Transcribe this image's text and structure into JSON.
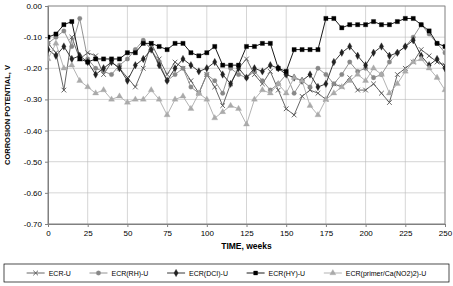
{
  "chart_data": {
    "type": "line",
    "x_label": "TIME, weeks",
    "y_label": "CORROSION POTENTIAL, V",
    "x": [
      0,
      5,
      10,
      15,
      20,
      25,
      30,
      35,
      40,
      45,
      50,
      55,
      60,
      65,
      70,
      75,
      80,
      85,
      90,
      95,
      100,
      105,
      110,
      115,
      120,
      125,
      130,
      135,
      140,
      145,
      150,
      155,
      160,
      165,
      170,
      175,
      180,
      185,
      190,
      195,
      200,
      205,
      210,
      215,
      220,
      225,
      230,
      235,
      240,
      245,
      250
    ],
    "series": [
      {
        "name": "ECR-U",
        "color": "#555555",
        "marker": "x",
        "values": [
          -0.12,
          -0.15,
          -0.27,
          -0.1,
          -0.17,
          -0.15,
          -0.16,
          -0.22,
          -0.18,
          -0.2,
          -0.23,
          -0.26,
          -0.2,
          -0.12,
          -0.17,
          -0.22,
          -0.18,
          -0.2,
          -0.24,
          -0.28,
          -0.22,
          -0.26,
          -0.32,
          -0.25,
          -0.2,
          -0.17,
          -0.22,
          -0.25,
          -0.21,
          -0.27,
          -0.33,
          -0.35,
          -0.29,
          -0.27,
          -0.28,
          -0.3,
          -0.25,
          -0.26,
          -0.23,
          -0.27,
          -0.27,
          -0.25,
          -0.28,
          -0.31,
          -0.22,
          -0.2,
          -0.18,
          -0.14,
          -0.16,
          -0.18,
          -0.19
        ]
      },
      {
        "name": "ECR(RH)-U",
        "color": "#888888",
        "marker": "circle",
        "values": [
          -0.12,
          -0.1,
          -0.08,
          -0.13,
          -0.04,
          -0.17,
          -0.2,
          -0.21,
          -0.22,
          -0.19,
          -0.17,
          -0.14,
          -0.11,
          -0.14,
          -0.18,
          -0.24,
          -0.22,
          -0.2,
          -0.26,
          -0.28,
          -0.22,
          -0.24,
          -0.28,
          -0.2,
          -0.22,
          -0.23,
          -0.21,
          -0.24,
          -0.27,
          -0.25,
          -0.22,
          -0.28,
          -0.24,
          -0.26,
          -0.2,
          -0.22,
          -0.25,
          -0.22,
          -0.18,
          -0.21,
          -0.2,
          -0.23,
          -0.22,
          -0.18,
          -0.15,
          -0.13,
          -0.1,
          -0.06,
          -0.09,
          -0.12,
          -0.15
        ]
      },
      {
        "name": "ECR(DCI)-U",
        "color": "#222222",
        "marker": "diamond",
        "values": [
          -0.14,
          -0.16,
          -0.13,
          -0.17,
          -0.16,
          -0.18,
          -0.22,
          -0.2,
          -0.18,
          -0.2,
          -0.24,
          -0.19,
          -0.17,
          -0.14,
          -0.19,
          -0.24,
          -0.2,
          -0.17,
          -0.19,
          -0.21,
          -0.2,
          -0.18,
          -0.22,
          -0.25,
          -0.2,
          -0.23,
          -0.2,
          -0.21,
          -0.19,
          -0.2,
          -0.22,
          -0.23,
          -0.24,
          -0.22,
          -0.26,
          -0.25,
          -0.18,
          -0.15,
          -0.13,
          -0.16,
          -0.19,
          -0.15,
          -0.13,
          -0.16,
          -0.15,
          -0.13,
          -0.11,
          -0.16,
          -0.19,
          -0.17,
          -0.2
        ]
      },
      {
        "name": "ECR(HY)-U",
        "color": "#000000",
        "marker": "square",
        "values": [
          -0.1,
          -0.09,
          -0.06,
          -0.05,
          -0.17,
          -0.18,
          -0.17,
          -0.17,
          -0.17,
          -0.17,
          -0.15,
          -0.15,
          -0.12,
          -0.12,
          -0.13,
          -0.14,
          -0.12,
          -0.12,
          -0.15,
          -0.16,
          -0.15,
          -0.13,
          -0.19,
          -0.19,
          -0.19,
          -0.13,
          -0.13,
          -0.12,
          -0.12,
          -0.2,
          -0.21,
          -0.14,
          -0.14,
          -0.14,
          -0.14,
          -0.04,
          -0.04,
          -0.07,
          -0.06,
          -0.06,
          -0.06,
          -0.05,
          -0.06,
          -0.06,
          -0.05,
          -0.04,
          -0.04,
          -0.06,
          -0.08,
          -0.12,
          -0.13
        ]
      },
      {
        "name": "ECR(primer/Ca(NO2)2)-U",
        "color": "#aaaaaa",
        "marker": "triangle",
        "values": [
          -0.17,
          -0.12,
          -0.2,
          -0.19,
          -0.24,
          -0.26,
          -0.28,
          -0.27,
          -0.3,
          -0.29,
          -0.31,
          -0.3,
          -0.3,
          -0.27,
          -0.3,
          -0.35,
          -0.3,
          -0.29,
          -0.33,
          -0.28,
          -0.3,
          -0.36,
          -0.34,
          -0.32,
          -0.33,
          -0.38,
          -0.3,
          -0.27,
          -0.28,
          -0.25,
          -0.28,
          -0.23,
          -0.24,
          -0.32,
          -0.35,
          -0.3,
          -0.28,
          -0.26,
          -0.24,
          -0.22,
          -0.24,
          -0.2,
          -0.22,
          -0.28,
          -0.25,
          -0.21,
          -0.18,
          -0.17,
          -0.2,
          -0.23,
          -0.27
        ]
      }
    ],
    "xlim": [
      0,
      250
    ],
    "xticks": [
      0,
      25,
      50,
      75,
      100,
      125,
      150,
      175,
      200,
      225,
      250
    ],
    "ylim": [
      -0.7,
      0.0
    ],
    "yticks": [
      {
        "value": -0.7,
        "label": "-0.70"
      },
      {
        "value": -0.6,
        "label": "-0.60"
      },
      {
        "value": -0.5,
        "label": "-0.50"
      },
      {
        "value": -0.4,
        "label": "-0.40"
      },
      {
        "value": -0.3,
        "label": "-0.30"
      },
      {
        "value": -0.2,
        "label": "-0.20"
      },
      {
        "value": -0.1,
        "label": "-0.10"
      },
      {
        "value": 0.0,
        "label": "0.00"
      }
    ],
    "grid": true,
    "legend": "bottom"
  }
}
